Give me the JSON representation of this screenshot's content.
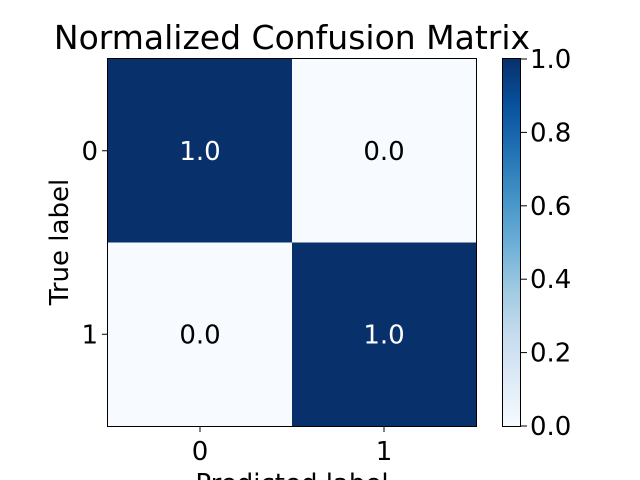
{
  "chart_data": {
    "type": "heatmap",
    "title": "Normalized Confusion Matrix",
    "xlabel": "Predicted label",
    "ylabel": "True label",
    "x_categories": [
      "0",
      "1"
    ],
    "y_categories": [
      "0",
      "1"
    ],
    "values": [
      [
        1.0,
        0.0
      ],
      [
        0.0,
        1.0
      ]
    ],
    "cell_labels": [
      [
        "1.0",
        "0.0"
      ],
      [
        "0.0",
        "1.0"
      ]
    ],
    "colorscale": "Blues",
    "colors": {
      "low": "#f7fbff",
      "high": "#08306b"
    },
    "colorbar": {
      "range": [
        0.0,
        1.0
      ],
      "ticks": [
        0.0,
        0.2,
        0.4,
        0.6,
        0.8,
        1.0
      ],
      "tick_labels": [
        "0.0",
        "0.2",
        "0.4",
        "0.6",
        "0.8",
        "1.0"
      ]
    }
  }
}
